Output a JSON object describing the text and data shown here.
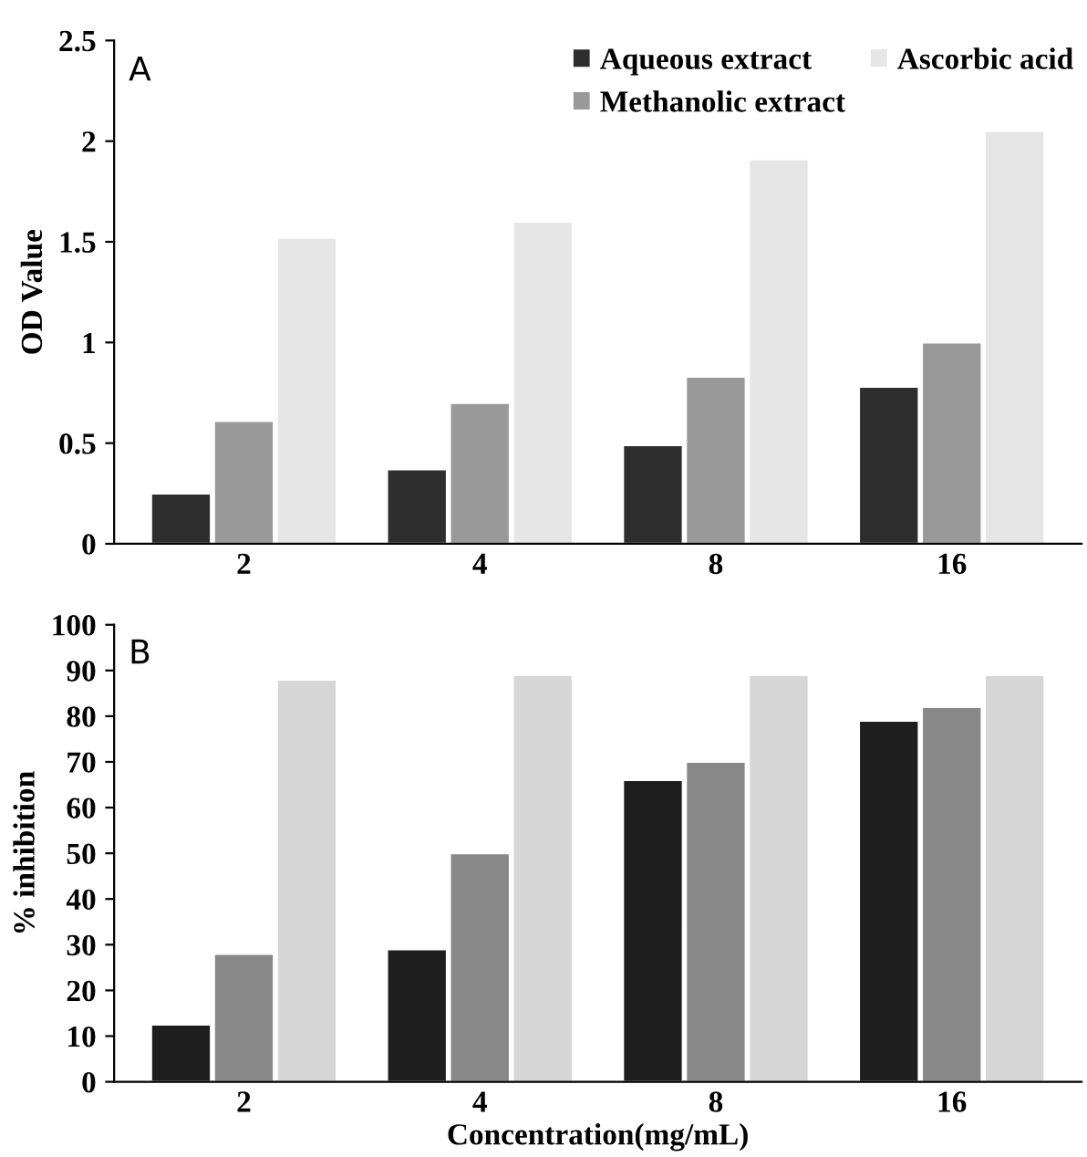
{
  "chart_data": [
    {
      "type": "bar",
      "ylabel": "OD Value",
      "annotations": [
        "A"
      ],
      "categories": [
        "2",
        "4",
        "8",
        "16"
      ],
      "ylim": [
        0,
        2.5
      ],
      "yticks": [
        0,
        0.5,
        1,
        1.5,
        2,
        2.5
      ],
      "grid": false,
      "legend": "top right",
      "series": [
        {
          "name": "Aqueous extract",
          "color": "#2e2e2e",
          "values": [
            0.25,
            0.37,
            0.49,
            0.78
          ]
        },
        {
          "name": "Methanolic extract",
          "color": "#999999",
          "values": [
            0.61,
            0.7,
            0.83,
            1.0
          ]
        },
        {
          "name": "Ascorbic acid",
          "color": "#e6e6e6",
          "values": [
            1.52,
            1.6,
            1.91,
            2.05
          ]
        }
      ]
    },
    {
      "type": "bar",
      "ylabel": "% inhibition",
      "xlabel": "Concentration(mg/mL)",
      "annotations": [
        "B"
      ],
      "categories": [
        "2",
        "4",
        "8",
        "16"
      ],
      "ylim": [
        0,
        100
      ],
      "yticks": [
        0,
        10,
        20,
        30,
        40,
        50,
        60,
        70,
        80,
        90,
        100
      ],
      "grid": false,
      "series": [
        {
          "color": "#1e1e1e",
          "values": [
            12.5,
            29,
            66,
            79
          ]
        },
        {
          "color": "#888888",
          "values": [
            28,
            50,
            70,
            82
          ]
        },
        {
          "color": "#d6d6d6",
          "values": [
            88,
            89,
            89,
            89
          ]
        }
      ]
    }
  ]
}
